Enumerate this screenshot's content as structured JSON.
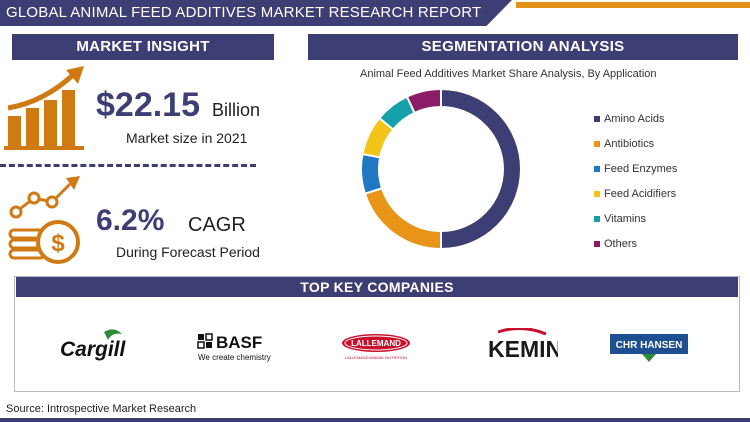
{
  "header": {
    "title": "GLOBAL ANIMAL FEED ADDITIVES  MARKET RESEARCH REPORT"
  },
  "insight": {
    "heading": "MARKET INSIGHT",
    "market_value": "$22.15",
    "market_unit": "Billion",
    "market_caption": "Market size in 2021",
    "cagr_value": "6.2%",
    "cagr_label": "CAGR",
    "cagr_caption": "During Forecast Period",
    "icons": [
      "growth-bar-chart-icon",
      "dollar-coins-icon"
    ]
  },
  "segmentation": {
    "heading": "SEGMENTATION ANALYSIS"
  },
  "chart_data": {
    "type": "pie",
    "title": "Animal Feed Additives Market Share Analysis, By Application",
    "style": "donut",
    "legend_position": "right",
    "categories": [
      "Amino Acids",
      "Antibiotics",
      "Feed Enzymes",
      "Feed Acidifiers",
      "Vitamins",
      "Others"
    ],
    "values": [
      50,
      20,
      8,
      8,
      7,
      7
    ],
    "colors": [
      "#3d3e73",
      "#e89416",
      "#1f78c1",
      "#f2c418",
      "#15a0ac",
      "#8b1c6a"
    ]
  },
  "companies": {
    "heading": "TOP KEY COMPANIES",
    "logos": [
      {
        "name": "Cargill",
        "text": "Cargill"
      },
      {
        "name": "BASF",
        "text": "BASF",
        "tagline": "We create chemistry"
      },
      {
        "name": "Lallemand",
        "text": "LALLEMAND",
        "tagline": "LALLEMAND ANIMAL NUTRITION"
      },
      {
        "name": "Kemin",
        "text": "KEMIN"
      },
      {
        "name": "Chr Hansen",
        "text": "CHR HANSEN"
      }
    ]
  },
  "footer": {
    "source": "Source: Introspective Market Research"
  }
}
